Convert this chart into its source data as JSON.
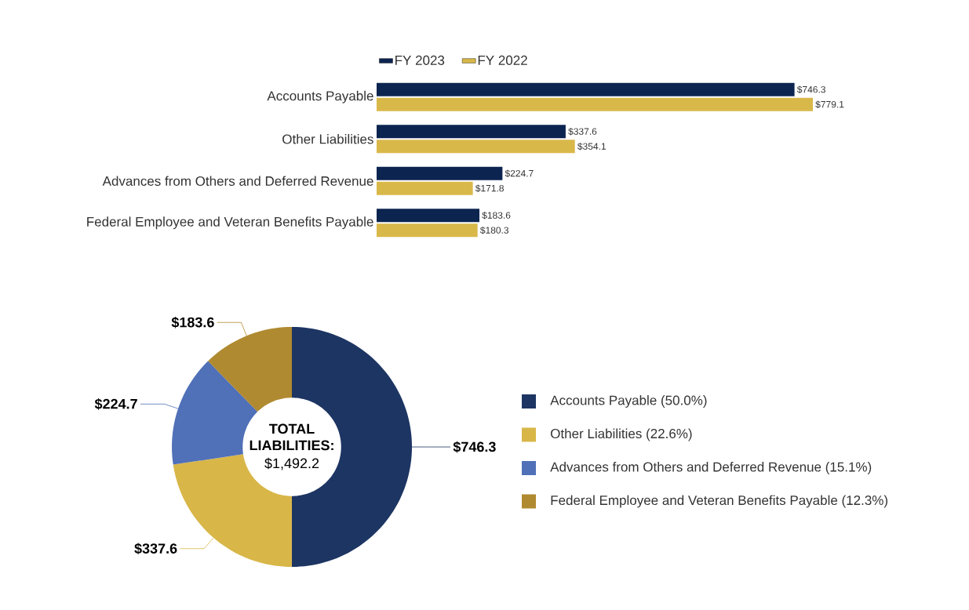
{
  "chart_data": [
    {
      "type": "bar",
      "orientation": "horizontal",
      "legend": "top left",
      "categories": [
        "Accounts Payable",
        "Other Liabilities",
        "Advances from Others and Deferred Revenue",
        "Federal Employee and Veteran Benefits Payable"
      ],
      "series": [
        {
          "name": "FY 2023",
          "color": "#0c2450",
          "values": [
            746.3,
            337.6,
            224.7,
            183.6
          ],
          "value_labels": [
            "$746.3",
            "$337.6",
            "$224.7",
            "$183.6"
          ]
        },
        {
          "name": "FY 2022",
          "color": "#d9b84a",
          "values": [
            779.1,
            354.1,
            171.8,
            180.3
          ],
          "value_labels": [
            "$779.1",
            "$354.1",
            "$171.8",
            "$180.3"
          ]
        }
      ]
    },
    {
      "type": "donut",
      "legend": "right",
      "categories": [
        "Accounts Payable (50.0%)",
        "Other Liabilities (22.6%)",
        "Advances from Others and Deferred Revenue (15.1%)",
        "Federal Employee and Veteran Benefits Payable (12.3%)"
      ],
      "values": [
        746.3,
        337.6,
        224.7,
        183.6
      ],
      "value_labels": [
        "$746.3",
        "$337.6",
        "$224.7",
        "$183.6"
      ],
      "colors": [
        "#1d3563",
        "#d8b648",
        "#5070b8",
        "#b08a30"
      ],
      "annotations": [
        "TOTAL LIABILITIES:",
        "$1,492.2"
      ]
    }
  ]
}
